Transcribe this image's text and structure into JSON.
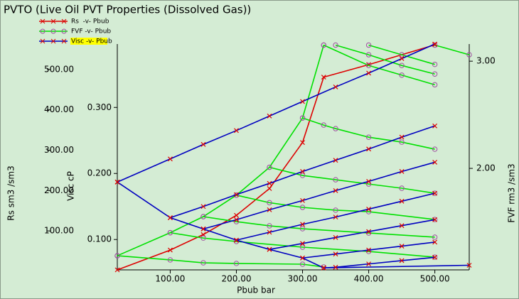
{
  "chart_data": {
    "type": "line",
    "title": "PVTO (Live Oil PVT Properties (Dissolved Gas))",
    "xlabel": "Pbub  bar",
    "ylabel": "Rs  sm3 /sm3",
    "y2label": "FVF  rm3 /sm3",
    "y3label": "Visc  cP",
    "xlim": [
      20,
      552
    ],
    "xticks": [
      {
        "value": 100,
        "label": "100.00"
      },
      {
        "value": 200,
        "label": "200.00"
      },
      {
        "value": 300,
        "label": "300.00"
      },
      {
        "value": 400,
        "label": "400.00"
      },
      {
        "value": 500,
        "label": "500.00"
      }
    ],
    "ylim": [
      3.5,
      563
    ],
    "yticks": [
      {
        "value": 100,
        "label": "100.00"
      },
      {
        "value": 200,
        "label": "200.00"
      },
      {
        "value": 300,
        "label": "300.00"
      },
      {
        "value": 400,
        "label": "400.00"
      },
      {
        "value": 500,
        "label": "500.00"
      }
    ],
    "y2lim": [
      1.053,
      3.16
    ],
    "y2ticks": [
      {
        "value": 2,
        "label": "2.00"
      },
      {
        "value": 3,
        "label": "3.00"
      }
    ],
    "y3lim": [
      0.054,
      0.396
    ],
    "y3ticks": [
      {
        "value": 0.1,
        "label": "0.100"
      },
      {
        "value": 0.2,
        "label": "0.200"
      },
      {
        "value": 0.3,
        "label": "0.300"
      }
    ],
    "series": [
      {
        "name": "Rs  -v- Pbub",
        "color": "#dd0000",
        "marker_color": "#dd0000",
        "marker": "x",
        "axis": "y",
        "x": [
          20,
          100,
          150,
          200,
          250,
          300,
          332,
          400,
          500
        ],
        "values": [
          3.5,
          52.6,
          91,
          138.6,
          205,
          319,
          481,
          512,
          561
        ]
      },
      {
        "name": "FVF -v- Pbub",
        "color": "#00e000",
        "marker_color": "#a050a0",
        "marker": "o",
        "axis": "y2",
        "x": [
          20,
          100,
          150,
          200,
          250,
          300,
          332,
          null,
          20,
          100,
          150,
          200,
          300,
          332,
          null,
          100,
          150,
          200,
          300,
          400,
          500,
          null,
          150,
          200,
          250,
          300,
          400,
          500,
          null,
          200,
          250,
          300,
          350,
          400,
          500,
          null,
          250,
          300,
          350,
          400,
          450,
          500,
          null,
          300,
          332,
          350,
          400,
          450,
          500,
          null,
          332,
          400,
          450,
          500,
          null,
          350,
          400,
          450,
          500,
          null,
          400,
          450,
          500,
          null,
          500,
          552
        ],
        "values": [
          1.185,
          1.4,
          1.55,
          1.75,
          2.01,
          2.47,
          3.15,
          null,
          1.185,
          1.146,
          1.119,
          1.113,
          1.106,
          1.08,
          null,
          1.4,
          1.35,
          1.318,
          1.265,
          1.225,
          1.172,
          null,
          1.55,
          1.503,
          1.464,
          1.437,
          1.397,
          1.358,
          null,
          1.75,
          1.68,
          1.636,
          1.61,
          1.596,
          1.523,
          null,
          2.01,
          1.934,
          1.894,
          1.854,
          1.815,
          1.768,
          null,
          2.47,
          2.404,
          2.371,
          2.291,
          2.245,
          2.179,
          null,
          3.15,
          2.96,
          2.87,
          2.78,
          null,
          3.15,
          3.06,
          2.96,
          2.88,
          null,
          3.15,
          3.06,
          2.97,
          null,
          3.15,
          3.06
        ]
      },
      {
        "name": "Visc -v- Pbub",
        "color": "#0000c0",
        "marker_color": "#dd0000",
        "marker": "x",
        "axis": "y3",
        "legend_highlight": "#ffff00",
        "x": [
          20,
          100,
          150,
          200,
          250,
          300,
          332,
          null,
          20,
          100,
          150,
          200,
          250,
          300,
          350,
          400,
          450,
          500,
          null,
          100,
          150,
          200,
          250,
          300,
          350,
          400,
          450,
          500,
          null,
          150,
          200,
          250,
          300,
          350,
          400,
          450,
          500,
          null,
          200,
          250,
          300,
          350,
          400,
          450,
          500,
          null,
          250,
          300,
          350,
          400,
          450,
          500,
          null,
          300,
          350,
          400,
          450,
          500,
          null,
          332,
          350,
          400,
          450,
          500,
          null,
          332,
          552
        ],
        "values": [
          0.187,
          0.133,
          0.116,
          0.099,
          0.085,
          0.072,
          0.057,
          null,
          0.187,
          0.222,
          0.244,
          0.265,
          0.287,
          0.309,
          0.331,
          0.352,
          0.374,
          0.396,
          null,
          0.133,
          0.15,
          0.168,
          0.185,
          0.203,
          0.22,
          0.237,
          0.255,
          0.272,
          null,
          0.116,
          0.13,
          0.145,
          0.159,
          0.174,
          0.188,
          0.203,
          0.217,
          null,
          0.099,
          0.111,
          0.123,
          0.134,
          0.146,
          0.158,
          0.17,
          null,
          0.085,
          0.094,
          0.103,
          0.112,
          0.121,
          0.13,
          null,
          0.072,
          0.078,
          0.084,
          0.09,
          0.096,
          null,
          0.057,
          0.058,
          0.063,
          0.068,
          0.073,
          null,
          0.057,
          0.061
        ]
      }
    ]
  }
}
